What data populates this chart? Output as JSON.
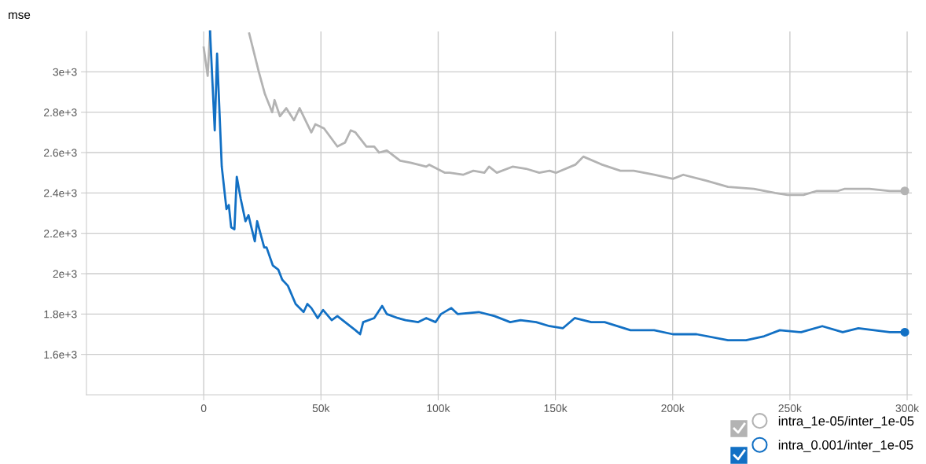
{
  "chart_data": {
    "type": "line",
    "title": "mse",
    "xlim": [
      -50000,
      302000
    ],
    "xticks": [
      0,
      {
        "value": 50000,
        "label": "50k"
      },
      {
        "value": 100000,
        "label": "100k"
      },
      {
        "value": 150000,
        "label": "150k"
      },
      {
        "value": 200000,
        "label": "200k"
      },
      {
        "value": 250000,
        "label": "250k"
      },
      {
        "value": 300000,
        "label": "300k"
      }
    ],
    "ylim": [
      1400,
      3200
    ],
    "yticks": [
      {
        "value": 1600,
        "label": "1.6e+3"
      },
      {
        "value": 1800,
        "label": "1.8e+3"
      },
      {
        "value": 2000,
        "label": "2e+3"
      },
      {
        "value": 2200,
        "label": "2.2e+3"
      },
      {
        "value": 2400,
        "label": "2.4e+3"
      },
      {
        "value": 2600,
        "label": "2.6e+3"
      },
      {
        "value": 2800,
        "label": "2.8e+3"
      },
      {
        "value": 3000,
        "label": "3e+3"
      }
    ],
    "grid": true,
    "legend": "bottom right",
    "line_style": "solid",
    "series": [
      {
        "name": "intra_1e-05/inter_1e-05",
        "color": "#b3b3b3",
        "x": [
          0,
          1700,
          2700,
          10000,
          19400,
          23500,
          26100,
          29200,
          30200,
          32500,
          35200,
          38500,
          40900,
          45900,
          47600,
          51300,
          57000,
          60300,
          62700,
          64700,
          69400,
          72700,
          74800,
          78100,
          83800,
          88200,
          94900,
          96200,
          102900,
          104900,
          110600,
          115000,
          119700,
          121700,
          125000,
          131700,
          137400,
          143100,
          147500,
          150200,
          158500,
          161900,
          169900,
          177700,
          183400,
          192100,
          200100,
          204500,
          214500,
          223600,
          234600,
          243700,
          249000,
          255800,
          261500,
          270500,
          273200,
          283900,
          292600,
          299000
        ],
        "values": [
          3120,
          2980,
          3200,
          null,
          3190,
          3000,
          2890,
          2800,
          2860,
          2780,
          2820,
          2760,
          2820,
          2700,
          2740,
          2720,
          2630,
          2650,
          2710,
          2700,
          2630,
          2630,
          2600,
          2610,
          2560,
          2550,
          2530,
          2540,
          2500,
          2500,
          2490,
          2510,
          2500,
          2530,
          2500,
          2530,
          2520,
          2500,
          2510,
          2500,
          2540,
          2580,
          2540,
          2510,
          2510,
          2490,
          2470,
          2490,
          2460,
          2430,
          2420,
          2400,
          2390,
          2390,
          2410,
          2410,
          2420,
          2420,
          2410,
          2410
        ]
      },
      {
        "name": "intra_0.001/inter_1e-05",
        "color": "#1270c4",
        "x": [
          2700,
          4700,
          5700,
          7700,
          9700,
          10700,
          11700,
          13100,
          14100,
          15800,
          17800,
          19100,
          20100,
          21800,
          22800,
          25800,
          26800,
          29500,
          31800,
          33500,
          35900,
          39200,
          42600,
          44200,
          45900,
          48600,
          50900,
          54600,
          57000,
          60300,
          64700,
          66700,
          68000,
          72700,
          76100,
          78100,
          82800,
          86100,
          91500,
          94900,
          98900,
          101200,
          105600,
          108300,
          117300,
          124000,
          130700,
          135100,
          141800,
          147500,
          153200,
          158200,
          165300,
          171000,
          182000,
          192100,
          200100,
          210200,
          223600,
          231300,
          239000,
          245700,
          254800,
          263800,
          272500,
          279200,
          292600,
          299000
        ],
        "values": [
          3200,
          2710,
          3090,
          2530,
          2320,
          2340,
          2230,
          2220,
          2480,
          2370,
          2260,
          2290,
          2240,
          2160,
          2260,
          2130,
          2130,
          2040,
          2020,
          1970,
          1940,
          1850,
          1810,
          1850,
          1830,
          1780,
          1820,
          1770,
          1790,
          1760,
          1720,
          1700,
          1760,
          1780,
          1840,
          1800,
          1780,
          1770,
          1760,
          1780,
          1760,
          1800,
          1830,
          1800,
          1810,
          1790,
          1760,
          1770,
          1760,
          1740,
          1730,
          1780,
          1760,
          1760,
          1720,
          1720,
          1700,
          1700,
          1670,
          1670,
          1690,
          1720,
          1710,
          1740,
          1710,
          1730,
          1710,
          1710
        ]
      }
    ]
  }
}
